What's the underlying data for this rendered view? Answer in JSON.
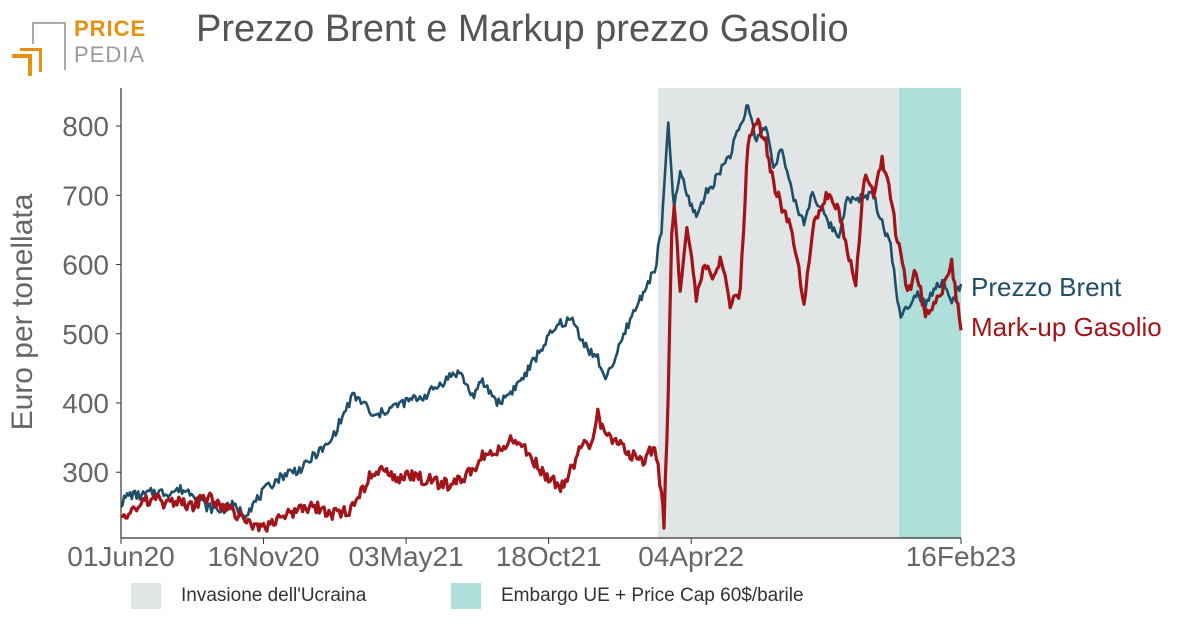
{
  "logo": {
    "line1": "PRICE",
    "line2": "PEDIA",
    "color_orange": "#e8900f",
    "color_gray": "#9a9a9a"
  },
  "chart_data": {
    "type": "line",
    "title": "Prezzo Brent e Markup prezzo Gasolio",
    "ylabel": "Euro per tonellata",
    "ylim": [
      205,
      855
    ],
    "yticks": [
      300,
      400,
      500,
      600,
      700,
      800
    ],
    "xlim": [
      "2020-06-01",
      "2023-02-16"
    ],
    "xticks": [
      "01Jun20",
      "16Nov20",
      "03May21",
      "18Oct21",
      "04Apr22",
      "16Feb23"
    ],
    "xtick_dates": [
      "2020-06-01",
      "2020-11-16",
      "2021-05-03",
      "2021-10-18",
      "2022-04-04",
      "2023-02-16"
    ],
    "grid": false,
    "legend": "bottom",
    "regions": [
      {
        "label": "Invasione dell'Ucraina",
        "start": "2022-02-24",
        "end": "2022-12-05",
        "color": "#e1e5e6"
      },
      {
        "label": "Embargo UE + Price Cap 60$/barile",
        "start": "2022-12-05",
        "end": "2023-02-16",
        "color": "#aedfdb"
      }
    ],
    "series": [
      {
        "name": "Prezzo Brent",
        "color": "#1f4e68",
        "points": [
          [
            "2020-06-01",
            255
          ],
          [
            "2020-06-10",
            268
          ],
          [
            "2020-06-25",
            266
          ],
          [
            "2020-07-10",
            272
          ],
          [
            "2020-07-25",
            270
          ],
          [
            "2020-08-10",
            275
          ],
          [
            "2020-08-25",
            271
          ],
          [
            "2020-09-10",
            250
          ],
          [
            "2020-09-25",
            245
          ],
          [
            "2020-10-10",
            252
          ],
          [
            "2020-10-25",
            240
          ],
          [
            "2020-11-05",
            255
          ],
          [
            "2020-11-16",
            272
          ],
          [
            "2020-11-30",
            288
          ],
          [
            "2020-12-15",
            300
          ],
          [
            "2021-01-01",
            305
          ],
          [
            "2021-01-15",
            325
          ],
          [
            "2021-02-01",
            340
          ],
          [
            "2021-02-15",
            375
          ],
          [
            "2021-03-01",
            410
          ],
          [
            "2021-03-15",
            400
          ],
          [
            "2021-03-25",
            378
          ],
          [
            "2021-04-10",
            390
          ],
          [
            "2021-04-25",
            398
          ],
          [
            "2021-05-10",
            405
          ],
          [
            "2021-05-25",
            410
          ],
          [
            "2021-06-10",
            425
          ],
          [
            "2021-06-25",
            440
          ],
          [
            "2021-07-05",
            445
          ],
          [
            "2021-07-20",
            410
          ],
          [
            "2021-08-01",
            430
          ],
          [
            "2021-08-20",
            400
          ],
          [
            "2021-09-05",
            418
          ],
          [
            "2021-09-20",
            440
          ],
          [
            "2021-10-05",
            470
          ],
          [
            "2021-10-18",
            495
          ],
          [
            "2021-11-01",
            515
          ],
          [
            "2021-11-15",
            520
          ],
          [
            "2021-11-25",
            495
          ],
          [
            "2021-12-05",
            475
          ],
          [
            "2021-12-15",
            465
          ],
          [
            "2021-12-22",
            435
          ],
          [
            "2022-01-05",
            465
          ],
          [
            "2022-01-20",
            515
          ],
          [
            "2022-02-01",
            545
          ],
          [
            "2022-02-10",
            570
          ],
          [
            "2022-02-20",
            590
          ],
          [
            "2022-02-28",
            650
          ],
          [
            "2022-03-05",
            745
          ],
          [
            "2022-03-08",
            800
          ],
          [
            "2022-03-15",
            680
          ],
          [
            "2022-03-22",
            735
          ],
          [
            "2022-03-30",
            700
          ],
          [
            "2022-04-10",
            670
          ],
          [
            "2022-04-20",
            700
          ],
          [
            "2022-05-01",
            720
          ],
          [
            "2022-05-10",
            740
          ],
          [
            "2022-05-20",
            760
          ],
          [
            "2022-06-01",
            800
          ],
          [
            "2022-06-10",
            830
          ],
          [
            "2022-06-20",
            780
          ],
          [
            "2022-07-01",
            800
          ],
          [
            "2022-07-10",
            745
          ],
          [
            "2022-07-20",
            765
          ],
          [
            "2022-08-01",
            700
          ],
          [
            "2022-08-15",
            660
          ],
          [
            "2022-08-25",
            705
          ],
          [
            "2022-09-10",
            665
          ],
          [
            "2022-09-25",
            640
          ],
          [
            "2022-10-05",
            700
          ],
          [
            "2022-10-15",
            690
          ],
          [
            "2022-10-25",
            700
          ],
          [
            "2022-11-05",
            700
          ],
          [
            "2022-11-15",
            660
          ],
          [
            "2022-11-25",
            630
          ],
          [
            "2022-12-01",
            570
          ],
          [
            "2022-12-07",
            520
          ],
          [
            "2022-12-15",
            540
          ],
          [
            "2022-12-25",
            560
          ],
          [
            "2023-01-05",
            545
          ],
          [
            "2023-01-15",
            565
          ],
          [
            "2023-01-25",
            575
          ],
          [
            "2023-02-05",
            545
          ],
          [
            "2023-02-16",
            572
          ]
        ]
      },
      {
        "name": "Mark-up Gasolio",
        "color": "#a11419",
        "points": [
          [
            "2020-06-01",
            245
          ],
          [
            "2020-06-10",
            238
          ],
          [
            "2020-06-25",
            255
          ],
          [
            "2020-07-10",
            262
          ],
          [
            "2020-07-25",
            252
          ],
          [
            "2020-08-10",
            258
          ],
          [
            "2020-08-25",
            250
          ],
          [
            "2020-09-10",
            265
          ],
          [
            "2020-09-25",
            255
          ],
          [
            "2020-10-10",
            245
          ],
          [
            "2020-10-25",
            230
          ],
          [
            "2020-11-05",
            222
          ],
          [
            "2020-11-16",
            220
          ],
          [
            "2020-11-30",
            228
          ],
          [
            "2020-12-15",
            238
          ],
          [
            "2021-01-01",
            245
          ],
          [
            "2021-01-15",
            250
          ],
          [
            "2021-02-01",
            242
          ],
          [
            "2021-02-15",
            238
          ],
          [
            "2021-03-01",
            250
          ],
          [
            "2021-03-15",
            280
          ],
          [
            "2021-03-25",
            305
          ],
          [
            "2021-04-10",
            298
          ],
          [
            "2021-04-25",
            290
          ],
          [
            "2021-05-10",
            295
          ],
          [
            "2021-05-25",
            290
          ],
          [
            "2021-06-10",
            285
          ],
          [
            "2021-06-25",
            282
          ],
          [
            "2021-07-05",
            288
          ],
          [
            "2021-07-20",
            300
          ],
          [
            "2021-08-01",
            325
          ],
          [
            "2021-08-20",
            335
          ],
          [
            "2021-09-05",
            345
          ],
          [
            "2021-09-20",
            335
          ],
          [
            "2021-10-05",
            310
          ],
          [
            "2021-10-18",
            290
          ],
          [
            "2021-11-01",
            280
          ],
          [
            "2021-11-15",
            305
          ],
          [
            "2021-11-25",
            340
          ],
          [
            "2021-12-05",
            335
          ],
          [
            "2021-12-15",
            385
          ],
          [
            "2021-12-22",
            355
          ],
          [
            "2022-01-05",
            345
          ],
          [
            "2022-01-20",
            330
          ],
          [
            "2022-02-01",
            315
          ],
          [
            "2022-02-10",
            320
          ],
          [
            "2022-02-20",
            340
          ],
          [
            "2022-02-28",
            270
          ],
          [
            "2022-03-03",
            225
          ],
          [
            "2022-03-08",
            420
          ],
          [
            "2022-03-12",
            640
          ],
          [
            "2022-03-15",
            690
          ],
          [
            "2022-03-22",
            560
          ],
          [
            "2022-03-30",
            660
          ],
          [
            "2022-04-10",
            550
          ],
          [
            "2022-04-20",
            600
          ],
          [
            "2022-05-01",
            580
          ],
          [
            "2022-05-10",
            610
          ],
          [
            "2022-05-20",
            545
          ],
          [
            "2022-06-01",
            560
          ],
          [
            "2022-06-10",
            780
          ],
          [
            "2022-06-20",
            810
          ],
          [
            "2022-07-01",
            775
          ],
          [
            "2022-07-10",
            720
          ],
          [
            "2022-07-20",
            680
          ],
          [
            "2022-08-01",
            650
          ],
          [
            "2022-08-15",
            545
          ],
          [
            "2022-08-25",
            650
          ],
          [
            "2022-09-10",
            700
          ],
          [
            "2022-09-25",
            680
          ],
          [
            "2022-10-05",
            620
          ],
          [
            "2022-10-15",
            570
          ],
          [
            "2022-10-25",
            730
          ],
          [
            "2022-11-05",
            700
          ],
          [
            "2022-11-15",
            755
          ],
          [
            "2022-11-25",
            700
          ],
          [
            "2022-12-01",
            650
          ],
          [
            "2022-12-07",
            620
          ],
          [
            "2022-12-15",
            560
          ],
          [
            "2022-12-25",
            590
          ],
          [
            "2023-01-05",
            530
          ],
          [
            "2023-01-15",
            545
          ],
          [
            "2023-01-25",
            560
          ],
          [
            "2023-02-05",
            600
          ],
          [
            "2023-02-16",
            505
          ]
        ]
      }
    ]
  }
}
